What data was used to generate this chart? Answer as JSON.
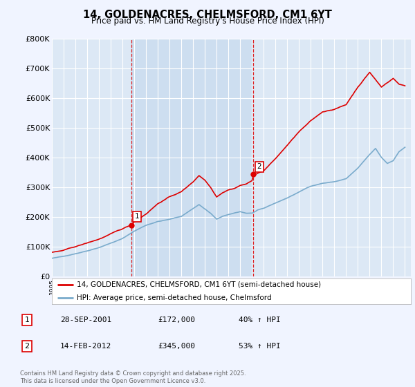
{
  "title": "14, GOLDENACRES, CHELMSFORD, CM1 6YT",
  "subtitle": "Price paid vs. HM Land Registry's House Price Index (HPI)",
  "ylim": [
    0,
    800000
  ],
  "yticks": [
    0,
    100000,
    200000,
    300000,
    400000,
    500000,
    600000,
    700000,
    800000
  ],
  "ytick_labels": [
    "£0",
    "£100K",
    "£200K",
    "£300K",
    "£400K",
    "£500K",
    "£600K",
    "£700K",
    "£800K"
  ],
  "background_color": "#f0f4ff",
  "plot_bg_color": "#dce8f5",
  "highlight_bg_color": "#ccddf0",
  "grid_color": "#ffffff",
  "sale1_x": 2001.74,
  "sale1_y": 172000,
  "sale2_x": 2012.12,
  "sale2_y": 345000,
  "red_color": "#dd0000",
  "blue_color": "#7aabcc",
  "legend_red_label": "14, GOLDENACRES, CHELMSFORD, CM1 6YT (semi-detached house)",
  "legend_blue_label": "HPI: Average price, semi-detached house, Chelmsford",
  "table_rows": [
    {
      "num": "1",
      "date": "28-SEP-2001",
      "price": "£172,000",
      "pct": "40% ↑ HPI"
    },
    {
      "num": "2",
      "date": "14-FEB-2012",
      "price": "£345,000",
      "pct": "53% ↑ HPI"
    }
  ],
  "footnote": "Contains HM Land Registry data © Crown copyright and database right 2025.\nThis data is licensed under the Open Government Licence v3.0.",
  "xlim_start": 1995.0,
  "xlim_end": 2025.5
}
